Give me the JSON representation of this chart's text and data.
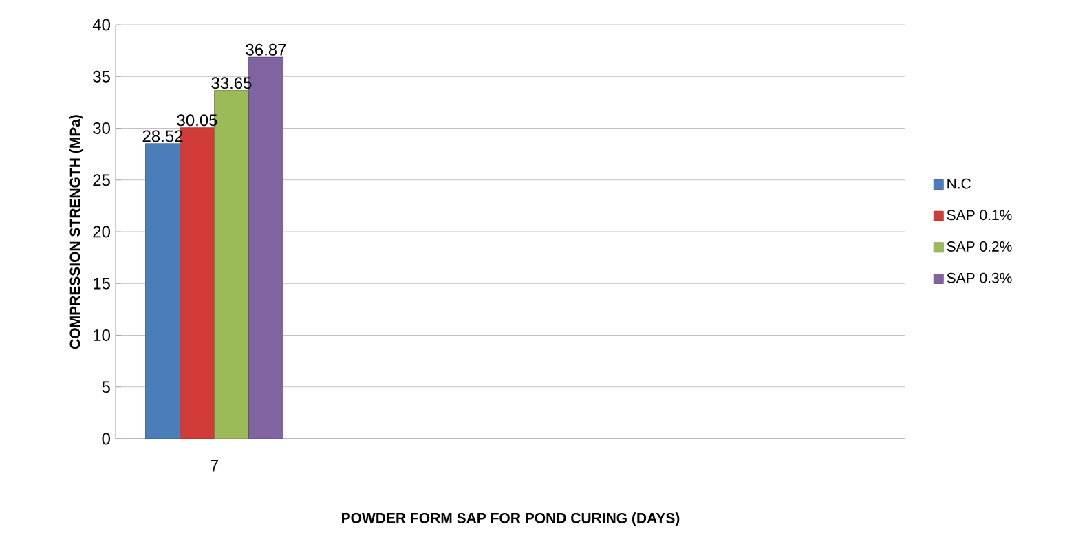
{
  "chart_data": {
    "type": "bar",
    "xlabel": "POWDER FORM SAP FOR POND CURING (DAYS)",
    "ylabel": "COMPRESSION STRENGTH (MPa)",
    "categories": [
      "7",
      null,
      null,
      null
    ],
    "series": [
      {
        "name": "N.C",
        "color": "#4a7ebb",
        "values": [
          28.52,
          null,
          null,
          null
        ]
      },
      {
        "name": "SAP 0.1%",
        "color": "#d13c39",
        "values": [
          30.05,
          null,
          null,
          null
        ]
      },
      {
        "name": "SAP 0.2%",
        "color": "#9bbb59",
        "values": [
          33.65,
          null,
          null,
          null
        ]
      },
      {
        "name": "SAP 0.3%",
        "color": "#8064a2",
        "values": [
          36.87,
          null,
          null,
          null
        ]
      }
    ],
    "ylim": [
      0,
      40
    ],
    "yticks": [
      0,
      5,
      10,
      15,
      20,
      25,
      30,
      35,
      40
    ],
    "grid": "y",
    "legend": "right",
    "data_labels": true
  }
}
